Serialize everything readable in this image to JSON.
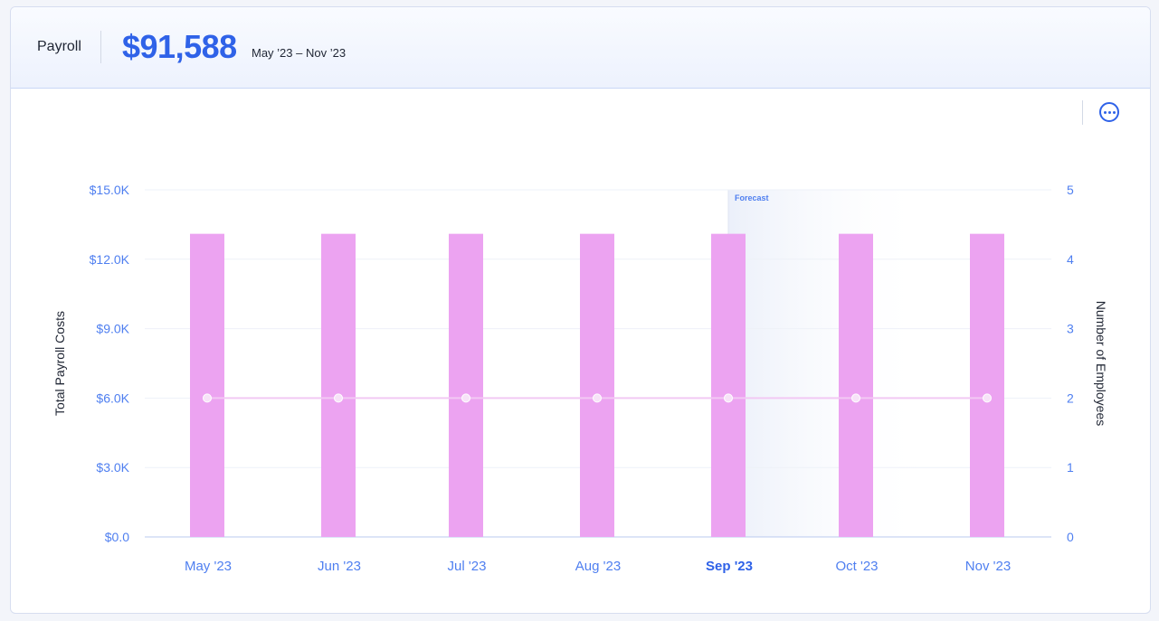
{
  "header": {
    "title": "Payroll",
    "total": "$91,588",
    "range": "May ’23 – Nov ’23"
  },
  "menu": {
    "icon": "more-horizontal-icon"
  },
  "colors": {
    "accent": "#2f62e8",
    "bar": "#eca3f1",
    "line": "#f2c9f4",
    "axis_text": "#4f7ff0"
  },
  "chart_data": {
    "type": "bar",
    "categories": [
      "May '23",
      "Jun '23",
      "Jul '23",
      "Aug '23",
      "Sep '23",
      "Oct '23",
      "Nov '23"
    ],
    "highlighted_category": "Sep '23",
    "forecast_label": "Forecast",
    "forecast_start_category": "Sep '23",
    "series": [
      {
        "type": "bar",
        "axis": "left",
        "values": [
          13100,
          13100,
          13100,
          13100,
          13100,
          13100,
          13100
        ]
      },
      {
        "type": "line",
        "axis": "right",
        "values": [
          2,
          2,
          2,
          2,
          2,
          2,
          2
        ]
      }
    ],
    "y_left": {
      "label": "Total Payroll Costs",
      "range": [
        0,
        15000
      ],
      "ticks": [
        "$0.0",
        "$3.0K",
        "$6.0K",
        "$9.0K",
        "$12.0K",
        "$15.0K"
      ],
      "tick_values": [
        0,
        3000,
        6000,
        9000,
        12000,
        15000
      ]
    },
    "y_right": {
      "label": "Number of Employees",
      "range": [
        0,
        5
      ],
      "ticks": [
        "0",
        "1",
        "2",
        "3",
        "4",
        "5"
      ],
      "tick_values": [
        0,
        1,
        2,
        3,
        4,
        5
      ]
    },
    "grid": true
  }
}
